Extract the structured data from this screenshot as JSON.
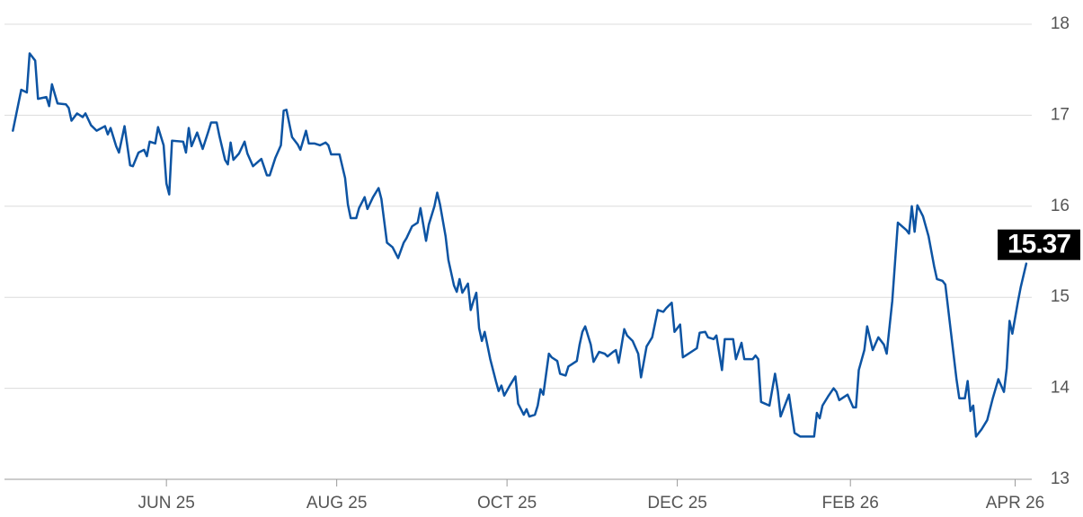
{
  "chart_data": {
    "type": "line",
    "color": "#0d54a3",
    "grid": true,
    "y_axis_side": "right",
    "xlim": [
      94,
      461
    ],
    "ylim": [
      13,
      18
    ],
    "yticks": [
      13,
      14,
      15,
      16,
      17,
      18
    ],
    "xticks": [
      {
        "value": 152,
        "label": "JUN 25"
      },
      {
        "value": 213,
        "label": "AUG 25"
      },
      {
        "value": 274,
        "label": "OCT 25"
      },
      {
        "value": 335,
        "label": "DEC 25"
      },
      {
        "value": 397,
        "label": "FEB 26"
      },
      {
        "value": 456,
        "label": "APR 26"
      }
    ],
    "x": [
      97,
      100,
      102,
      103,
      105,
      106,
      109,
      110,
      111,
      113,
      116,
      117,
      118,
      120,
      122,
      123,
      125,
      127,
      130,
      131,
      132,
      134,
      135,
      137,
      139,
      140,
      142,
      144,
      145,
      146,
      148,
      149,
      151,
      152,
      153,
      154,
      158,
      159,
      160,
      161,
      163,
      165,
      167,
      168,
      170,
      171,
      173,
      174,
      175,
      176,
      178,
      180,
      181,
      183,
      186,
      188,
      189,
      191,
      193,
      194,
      195,
      197,
      199,
      200,
      202,
      203,
      205,
      207,
      209,
      210,
      211,
      214,
      216,
      217,
      218,
      220,
      221,
      223,
      224,
      226,
      228,
      229,
      231,
      233,
      235,
      237,
      238,
      240,
      242,
      243,
      245,
      246,
      248,
      249,
      250,
      252,
      253,
      255,
      256,
      257,
      258,
      260,
      261,
      262,
      263,
      264,
      265,
      266,
      268,
      270,
      271,
      272,
      273,
      275,
      277,
      278,
      280,
      281,
      282,
      284,
      285,
      286,
      287,
      289,
      290,
      292,
      293,
      295,
      296,
      299,
      300,
      301,
      302,
      304,
      305,
      307,
      309,
      310,
      312,
      313,
      314,
      316,
      317,
      319,
      321,
      322,
      324,
      326,
      328,
      330,
      331,
      333,
      334,
      336,
      337,
      341,
      342,
      343,
      345,
      346,
      348,
      349,
      351,
      352,
      355,
      356,
      358,
      359,
      362,
      363,
      364,
      365,
      368,
      370,
      371,
      372,
      375,
      377,
      379,
      384,
      385,
      386,
      387,
      389,
      391,
      392,
      393,
      396,
      398,
      399,
      400,
      402,
      403,
      405,
      407,
      409,
      410,
      412,
      414,
      417,
      418,
      419,
      420,
      421,
      423,
      425,
      427,
      428,
      430,
      431,
      433,
      435,
      436,
      438,
      439,
      440,
      441,
      442,
      444,
      446,
      448,
      450,
      452,
      453,
      454,
      455,
      457,
      458,
      460
    ],
    "values": [
      16.83,
      17.28,
      17.25,
      17.68,
      17.6,
      17.18,
      17.2,
      17.1,
      17.34,
      17.13,
      17.12,
      17.08,
      16.94,
      17.02,
      16.98,
      17.02,
      16.89,
      16.83,
      16.88,
      16.79,
      16.86,
      16.66,
      16.59,
      16.88,
      16.45,
      16.44,
      16.59,
      16.62,
      16.55,
      16.71,
      16.69,
      16.87,
      16.67,
      16.25,
      16.13,
      16.72,
      16.71,
      16.59,
      16.86,
      16.66,
      16.81,
      16.63,
      16.82,
      16.92,
      16.92,
      16.77,
      16.51,
      16.46,
      16.7,
      16.51,
      16.58,
      16.71,
      16.58,
      16.44,
      16.52,
      16.34,
      16.34,
      16.53,
      16.67,
      17.05,
      17.06,
      16.76,
      16.68,
      16.62,
      16.83,
      16.69,
      16.69,
      16.67,
      16.7,
      16.67,
      16.57,
      16.57,
      16.31,
      16.02,
      15.87,
      15.87,
      15.98,
      16.1,
      15.97,
      16.1,
      16.2,
      16.08,
      15.6,
      15.55,
      15.43,
      15.6,
      15.65,
      15.78,
      15.82,
      15.98,
      15.62,
      15.8,
      16.0,
      16.15,
      16.02,
      15.67,
      15.41,
      15.13,
      15.06,
      15.2,
      15.05,
      15.15,
      14.86,
      14.96,
      15.05,
      14.66,
      14.52,
      14.62,
      14.32,
      14.08,
      13.97,
      14.03,
      13.92,
      14.03,
      14.13,
      13.83,
      13.71,
      13.77,
      13.69,
      13.71,
      13.81,
      13.99,
      13.93,
      14.38,
      14.34,
      14.3,
      14.16,
      14.14,
      14.24,
      14.3,
      14.48,
      14.62,
      14.68,
      14.48,
      14.29,
      14.4,
      14.38,
      14.35,
      14.4,
      14.42,
      14.28,
      14.65,
      14.58,
      14.52,
      14.38,
      14.12,
      14.46,
      14.56,
      14.86,
      14.84,
      14.88,
      14.94,
      14.62,
      14.7,
      14.34,
      14.42,
      14.44,
      14.61,
      14.62,
      14.56,
      14.54,
      14.58,
      14.2,
      14.54,
      14.54,
      14.32,
      14.5,
      14.32,
      14.32,
      14.36,
      14.32,
      13.85,
      13.81,
      14.16,
      13.97,
      13.69,
      13.93,
      13.51,
      13.47,
      13.47,
      13.73,
      13.67,
      13.81,
      13.91,
      14.0,
      13.96,
      13.87,
      13.93,
      13.79,
      13.79,
      14.2,
      14.42,
      14.68,
      14.42,
      14.56,
      14.48,
      14.38,
      14.96,
      15.82,
      15.74,
      15.7,
      16.0,
      15.72,
      16.01,
      15.89,
      15.67,
      15.34,
      15.2,
      15.18,
      15.14,
      14.62,
      14.1,
      13.89,
      13.89,
      14.08,
      13.75,
      13.81,
      13.47,
      13.55,
      13.65,
      13.89,
      14.1,
      13.96,
      14.22,
      14.74,
      14.6,
      14.95,
      15.11,
      15.37
    ]
  }
}
